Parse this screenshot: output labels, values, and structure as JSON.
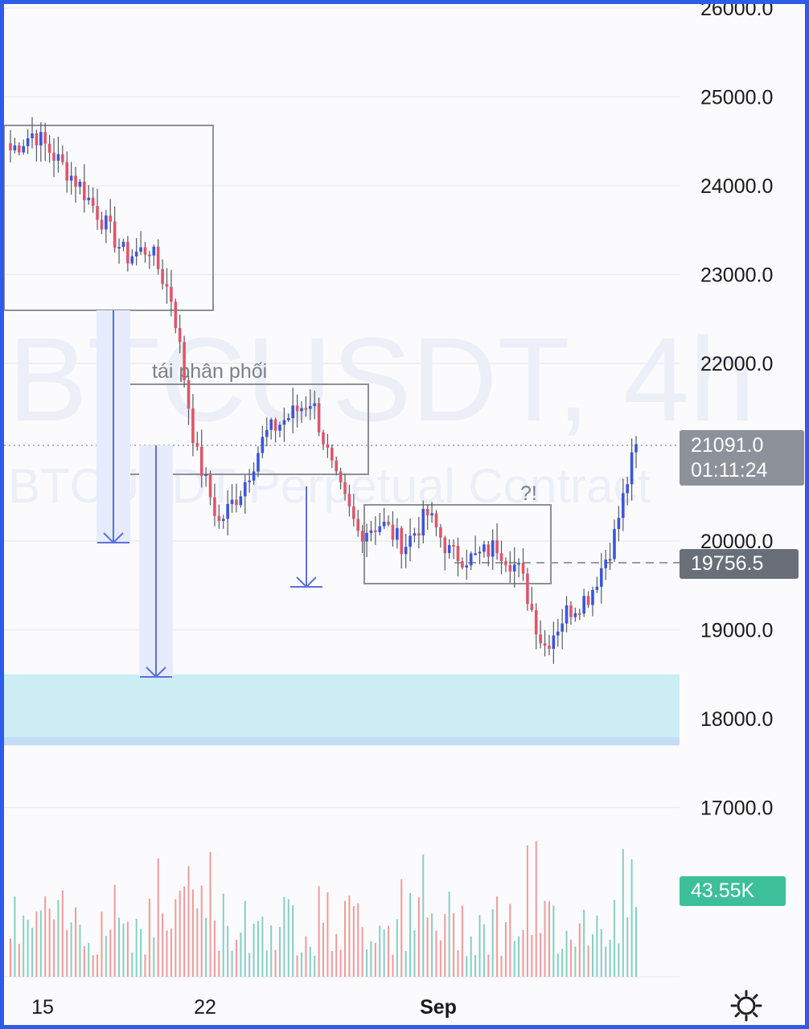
{
  "chart_data": {
    "type": "candlestick",
    "symbol": "BTCUSDT",
    "timeframe": "4h",
    "watermark_line1": "BTCUSDT, 4h",
    "watermark_line2": "BTCUSDT Perpetual Contract",
    "price_axis": {
      "ticks": [
        "26000.0",
        "25000.0",
        "24000.0",
        "23000.0",
        "22000.0",
        "20000.0",
        "19000.0",
        "18000.0",
        "17000.0"
      ],
      "ylim": [
        16000,
        26000
      ]
    },
    "time_axis": {
      "labels": [
        {
          "text": "15",
          "bold": false
        },
        {
          "text": "22",
          "bold": false
        },
        {
          "text": "Sep",
          "bold": true
        }
      ]
    },
    "last_price": "21091.0",
    "countdown": "01:11:24",
    "reference_price": "19756.5",
    "volume_label": "43.55K",
    "annotations": [
      "tái phân phối",
      "?!"
    ],
    "approx_close_path": [
      24400,
      24600,
      24300,
      24000,
      23600,
      23200,
      23300,
      22700,
      21000,
      20200,
      20600,
      21200,
      21400,
      21600,
      20700,
      20100,
      20200,
      19950,
      20300,
      19850,
      19800,
      19950,
      19650,
      18800,
      19200,
      19400,
      20000,
      21091
    ],
    "support_zone": [
      17700,
      18500
    ],
    "colors": {
      "up": "#3a55e0",
      "down": "#e0556a",
      "zone": "#cbedf3",
      "volume_up": "#86cfc4",
      "volume_down": "#f19a9a"
    }
  }
}
